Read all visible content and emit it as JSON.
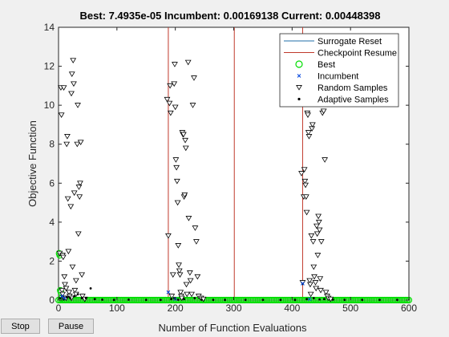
{
  "figure": {
    "title": "Best: 7.4935e-05 Incumbent: 0.00169138 Current: 0.00448398"
  },
  "controls": {
    "stop_label": "Stop",
    "pause_label": "Pause"
  },
  "chart_data": {
    "type": "scatter",
    "title": "Best: 7.4935e-05 Incumbent: 0.00169138 Current: 0.00448398",
    "xlabel": "Number of Function Evaluations",
    "ylabel": "Objective Function",
    "xlim": [
      0,
      600
    ],
    "ylim": [
      0,
      14
    ],
    "xticks": [
      0,
      100,
      200,
      300,
      400,
      500,
      600
    ],
    "yticks": [
      0,
      2,
      4,
      6,
      8,
      10,
      12,
      14
    ],
    "grid": false,
    "legend_position": "top-right",
    "legend": [
      {
        "label": "Surrogate Reset",
        "kind": "vline",
        "color": "#1f6fa8"
      },
      {
        "label": "Checkpoint Resume",
        "kind": "vline",
        "color": "#c0392b"
      },
      {
        "label": "Best",
        "kind": "circle",
        "color": "#00dd00"
      },
      {
        "label": "Incumbent",
        "kind": "x",
        "color": "#0044dd"
      },
      {
        "label": "Random Samples",
        "kind": "triangle-down",
        "color": "#000000"
      },
      {
        "label": "Adaptive Samples",
        "kind": "dot",
        "color": "#000000"
      }
    ],
    "surrogate_reset_x": [
      188,
      418
    ],
    "checkpoint_resume_x": [
      301
    ],
    "random_samples": [
      [
        2,
        2.4
      ],
      [
        4,
        10.9
      ],
      [
        5,
        9.5
      ],
      [
        7,
        2.3
      ],
      [
        8,
        2.2
      ],
      [
        9,
        10.9
      ],
      [
        6,
        0.5
      ],
      [
        7,
        0.3
      ],
      [
        9,
        0.1
      ],
      [
        10,
        1.2
      ],
      [
        11,
        0.8
      ],
      [
        13,
        0.6
      ],
      [
        14,
        8.0
      ],
      [
        15,
        8.4
      ],
      [
        16,
        5.2
      ],
      [
        17,
        2.5
      ],
      [
        18,
        0.4
      ],
      [
        19,
        0.2
      ],
      [
        21,
        4.8
      ],
      [
        22,
        10.6
      ],
      [
        23,
        11.6
      ],
      [
        24,
        1.7
      ],
      [
        25,
        12.3
      ],
      [
        26,
        11.1
      ],
      [
        27,
        5.5
      ],
      [
        28,
        0.5
      ],
      [
        30,
        1.0
      ],
      [
        32,
        8.0
      ],
      [
        33,
        10.0
      ],
      [
        34,
        3.4
      ],
      [
        35,
        5.8
      ],
      [
        36,
        5.3
      ],
      [
        37,
        6.0
      ],
      [
        38,
        8.1
      ],
      [
        40,
        1.3
      ],
      [
        41,
        0.2
      ],
      [
        13,
        0.1
      ],
      [
        22,
        0.1
      ],
      [
        30,
        0.3
      ],
      [
        45,
        0.05
      ],
      [
        186,
        10.3
      ],
      [
        188,
        3.3
      ],
      [
        190,
        10.1
      ],
      [
        191,
        11.0
      ],
      [
        192,
        9.6
      ],
      [
        194,
        0.2
      ],
      [
        196,
        1.3
      ],
      [
        198,
        11.1
      ],
      [
        199,
        12.1
      ],
      [
        200,
        9.9
      ],
      [
        201,
        7.2
      ],
      [
        202,
        6.8
      ],
      [
        203,
        6.1
      ],
      [
        204,
        5.0
      ],
      [
        205,
        2.8
      ],
      [
        206,
        1.8
      ],
      [
        207,
        1.5
      ],
      [
        208,
        1.3
      ],
      [
        209,
        0.4
      ],
      [
        210,
        0.2
      ],
      [
        211,
        0.1
      ],
      [
        212,
        8.6
      ],
      [
        213,
        8.5
      ],
      [
        214,
        8.5
      ],
      [
        215,
        5.3
      ],
      [
        216,
        5.4
      ],
      [
        217,
        8.2
      ],
      [
        218,
        7.8
      ],
      [
        219,
        0.8
      ],
      [
        220,
        0.3
      ],
      [
        222,
        12.2
      ],
      [
        223,
        4.2
      ],
      [
        225,
        1.4
      ],
      [
        226,
        1.0
      ],
      [
        228,
        0.3
      ],
      [
        230,
        10.0
      ],
      [
        232,
        11.4
      ],
      [
        234,
        3.7
      ],
      [
        236,
        3.0
      ],
      [
        238,
        1.2
      ],
      [
        240,
        0.2
      ],
      [
        244,
        0.1
      ],
      [
        248,
        0.05
      ],
      [
        416,
        6.5
      ],
      [
        418,
        0.9
      ],
      [
        420,
        5.3
      ],
      [
        421,
        6.7
      ],
      [
        422,
        6.1
      ],
      [
        423,
        5.9
      ],
      [
        424,
        5.3
      ],
      [
        425,
        4.5
      ],
      [
        426,
        9.6
      ],
      [
        427,
        9.5
      ],
      [
        428,
        8.6
      ],
      [
        429,
        8.4
      ],
      [
        430,
        1.0
      ],
      [
        431,
        0.8
      ],
      [
        432,
        0.3
      ],
      [
        433,
        3.3
      ],
      [
        434,
        8.8
      ],
      [
        435,
        9.0
      ],
      [
        436,
        3.0
      ],
      [
        437,
        1.7
      ],
      [
        438,
        1.2
      ],
      [
        440,
        0.9
      ],
      [
        441,
        0.6
      ],
      [
        442,
        3.8
      ],
      [
        443,
        3.4
      ],
      [
        444,
        2.3
      ],
      [
        445,
        4.3
      ],
      [
        446,
        4.0
      ],
      [
        447,
        3.6
      ],
      [
        448,
        1.1
      ],
      [
        449,
        0.5
      ],
      [
        450,
        3.0
      ],
      [
        452,
        9.6
      ],
      [
        454,
        9.7
      ],
      [
        456,
        7.2
      ],
      [
        458,
        0.4
      ],
      [
        460,
        0.2
      ],
      [
        462,
        0.1
      ],
      [
        466,
        0.05
      ]
    ],
    "adaptive_samples": [
      [
        3,
        0.1
      ],
      [
        8,
        0.05
      ],
      [
        14,
        0.15
      ],
      [
        20,
        0.1
      ],
      [
        27,
        0.2
      ],
      [
        33,
        0.3
      ],
      [
        40,
        0.1
      ],
      [
        47,
        0.1
      ],
      [
        55,
        0.6
      ],
      [
        62,
        0.05
      ],
      [
        75,
        0.02
      ],
      [
        95,
        0.01
      ],
      [
        120,
        0.02
      ],
      [
        150,
        0.01
      ],
      [
        175,
        0.01
      ],
      [
        193,
        0.05
      ],
      [
        198,
        0.1
      ],
      [
        205,
        0.02
      ],
      [
        215,
        0.05
      ],
      [
        233,
        0.1
      ],
      [
        245,
        0.02
      ],
      [
        265,
        0.01
      ],
      [
        285,
        0.01
      ],
      [
        320,
        0.01
      ],
      [
        350,
        0.01
      ],
      [
        380,
        0.01
      ],
      [
        405,
        0.01
      ],
      [
        425,
        0.05
      ],
      [
        437,
        0.1
      ],
      [
        447,
        0.03
      ],
      [
        455,
        0.05
      ],
      [
        470,
        0.02
      ],
      [
        490,
        0.01
      ],
      [
        520,
        0.01
      ],
      [
        550,
        0.01
      ],
      [
        580,
        0.01
      ]
    ],
    "best_x_range": [
      0,
      600
    ],
    "best_early": [
      [
        1,
        2.4
      ],
      [
        2,
        2.3
      ],
      [
        3,
        0.5
      ],
      [
        4,
        0.4
      ],
      [
        5,
        0.1
      ]
    ],
    "best_value_plateau": 0.0,
    "incumbent_points": [
      [
        418,
        0.85
      ],
      [
        188,
        0.4
      ],
      [
        6,
        0.2
      ],
      [
        10,
        0.1
      ],
      [
        200,
        0.05
      ],
      [
        430,
        0.05
      ]
    ]
  }
}
